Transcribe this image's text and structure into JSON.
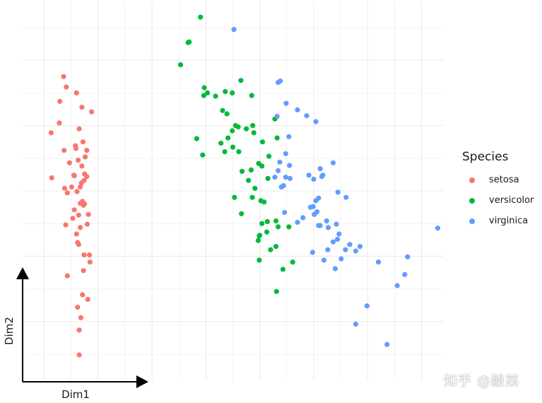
{
  "chart_data": {
    "type": "scatter",
    "xlabel": "Dim1",
    "ylabel": "Dim2",
    "xlim": [
      -3.4,
      4.4
    ],
    "ylim": [
      -2.9,
      2.9
    ],
    "grid": true,
    "legend_position": "right",
    "legend_title": "Species",
    "series": [
      {
        "name": "setosa",
        "color": "#F8766D",
        "points": [
          [
            -2.29,
            -0.16
          ],
          [
            -2.57,
            -0.03
          ],
          [
            -2.33,
            -0.56
          ],
          [
            -2.38,
            -0.79
          ],
          [
            -2.29,
            -1.59
          ],
          [
            -2.16,
            -0.98
          ],
          [
            -2.6,
            -0.52
          ],
          [
            -2.44,
            -0.29
          ],
          [
            -2.18,
            -0.36
          ],
          [
            -2.49,
            0.06
          ],
          [
            -2.62,
            0.04
          ],
          [
            -2.44,
            0.23
          ],
          [
            -2.25,
            0.26
          ],
          [
            -2.24,
            0.52
          ],
          [
            -2.21,
            0.62
          ],
          [
            -2.3,
            0.38
          ],
          [
            -2.31,
            0.12
          ],
          [
            -2.45,
            0.24
          ],
          [
            -2.41,
            0.65
          ],
          [
            -2.37,
            0.47
          ],
          [
            -2.28,
            0.75
          ],
          [
            -2.35,
            0.95
          ],
          [
            -2.3,
            1.28
          ],
          [
            -2.12,
            1.21
          ],
          [
            -2.21,
            0.22
          ],
          [
            -2.33,
            -0.19
          ],
          [
            -2.36,
            -0.37
          ],
          [
            -2.36,
            -0.82
          ],
          [
            -2.2,
            -0.51
          ],
          [
            -2.26,
            -0.98
          ],
          [
            -2.35,
            -2.51
          ],
          [
            -2.32,
            -1.94
          ],
          [
            -2.35,
            -2.13
          ],
          [
            -2.15,
            -1.09
          ],
          [
            -2.27,
            -1.22
          ],
          [
            -2.4,
            -0.66
          ],
          [
            -2.47,
            -0.42
          ],
          [
            -2.42,
            0.69
          ],
          [
            -2.33,
            0.06
          ],
          [
            -2.53,
            0.43
          ],
          [
            -2.86,
            0.2
          ],
          [
            -2.59,
            1.59
          ],
          [
            -2.64,
            1.75
          ],
          [
            -2.71,
            1.37
          ],
          [
            -2.72,
            1.04
          ],
          [
            -2.63,
            0.62
          ],
          [
            -2.87,
            0.89
          ],
          [
            -2.4,
            1.5
          ],
          [
            -2.38,
            -1.78
          ],
          [
            -2.57,
            -1.3
          ],
          [
            -2.25,
            -0.2
          ],
          [
            -2.39,
            -0.01
          ],
          [
            -2.27,
            -0.22
          ],
          [
            -2.19,
            -1.66
          ],
          [
            -2.26,
            0.16
          ]
        ]
      },
      {
        "name": "versicolor",
        "color": "#00BA38",
        "points": [
          [
            -0.1,
            2.66
          ],
          [
            -0.31,
            2.28
          ],
          [
            -0.33,
            2.27
          ],
          [
            -0.47,
            1.93
          ],
          [
            0.65,
            1.69
          ],
          [
            0.36,
            1.52
          ],
          [
            0.49,
            1.5
          ],
          [
            0.03,
            1.5
          ],
          [
            -0.04,
            1.46
          ],
          [
            0.85,
            1.46
          ],
          [
            0.31,
            1.23
          ],
          [
            -0.03,
            1.58
          ],
          [
            0.18,
            1.45
          ],
          [
            1.28,
            1.1
          ],
          [
            0.39,
            1.18
          ],
          [
            0.55,
            1.0
          ],
          [
            0.87,
            1.0
          ],
          [
            0.49,
            0.92
          ],
          [
            0.41,
            0.81
          ],
          [
            -0.17,
            0.8
          ],
          [
            0.5,
            0.67
          ],
          [
            0.28,
            0.73
          ],
          [
            1.05,
            0.75
          ],
          [
            0.89,
            0.89
          ],
          [
            1.32,
            0.81
          ],
          [
            0.35,
            0.6
          ],
          [
            0.61,
            0.6
          ],
          [
            -0.06,
            0.55
          ],
          [
            0.98,
            0.42
          ],
          [
            1.17,
            0.53
          ],
          [
            1.04,
            0.38
          ],
          [
            0.84,
            0.32
          ],
          [
            0.67,
            0.3
          ],
          [
            0.79,
            0.16
          ],
          [
            0.91,
            0.04
          ],
          [
            0.53,
            -0.1
          ],
          [
            1.02,
            -0.15
          ],
          [
            0.86,
            -0.1
          ],
          [
            1.08,
            -0.17
          ],
          [
            1.14,
            -0.47
          ],
          [
            1.3,
            -0.46
          ],
          [
            1.54,
            -0.55
          ],
          [
            1.0,
            -0.68
          ],
          [
            1.13,
            -0.63
          ],
          [
            1.34,
            -0.55
          ],
          [
            1.3,
            -0.85
          ],
          [
            0.97,
            -0.76
          ],
          [
            0.99,
            -0.69
          ],
          [
            1.04,
            -0.5
          ],
          [
            0.66,
            -0.35
          ],
          [
            1.43,
            -1.2
          ],
          [
            1.2,
            -0.9
          ],
          [
            1.61,
            -1.09
          ],
          [
            1.31,
            -1.54
          ],
          [
            0.99,
            -1.06
          ],
          [
            0.6,
            0.98
          ],
          [
            0.75,
            0.95
          ],
          [
            1.15,
            0.19
          ]
        ]
      },
      {
        "name": "virginica",
        "color": "#619CFF",
        "points": [
          [
            0.52,
            2.47
          ],
          [
            1.34,
            1.66
          ],
          [
            1.38,
            1.68
          ],
          [
            1.49,
            1.34
          ],
          [
            1.7,
            1.24
          ],
          [
            1.87,
            1.15
          ],
          [
            2.04,
            1.06
          ],
          [
            1.32,
            1.14
          ],
          [
            1.54,
            0.83
          ],
          [
            1.48,
            0.57
          ],
          [
            1.55,
            0.39
          ],
          [
            1.34,
            0.31
          ],
          [
            1.37,
            0.44
          ],
          [
            1.48,
            0.21
          ],
          [
            1.28,
            0.21
          ],
          [
            1.44,
            0.08
          ],
          [
            1.56,
            0.19
          ],
          [
            1.4,
            0.06
          ],
          [
            1.46,
            -0.33
          ],
          [
            1.7,
            -0.48
          ],
          [
            1.91,
            0.24
          ],
          [
            2.15,
            0.22
          ],
          [
            2.17,
            0.24
          ],
          [
            2.0,
            0.18
          ],
          [
            2.36,
            0.43
          ],
          [
            2.12,
            0.34
          ],
          [
            2.45,
            -0.02
          ],
          [
            2.6,
            -0.1
          ],
          [
            2.09,
            -0.11
          ],
          [
            1.99,
            -0.24
          ],
          [
            2.04,
            -0.15
          ],
          [
            1.8,
            -0.41
          ],
          [
            1.94,
            -0.25
          ],
          [
            2.06,
            -0.32
          ],
          [
            2.01,
            -0.36
          ],
          [
            2.12,
            -0.53
          ],
          [
            2.27,
            -0.56
          ],
          [
            2.09,
            -0.53
          ],
          [
            2.24,
            -0.46
          ],
          [
            2.42,
            -0.51
          ],
          [
            2.47,
            -0.66
          ],
          [
            2.44,
            -0.74
          ],
          [
            2.36,
            -0.78
          ],
          [
            2.59,
            -0.9
          ],
          [
            2.67,
            -0.82
          ],
          [
            2.78,
            -0.92
          ],
          [
            2.86,
            -0.85
          ],
          [
            2.26,
            -0.9
          ],
          [
            1.98,
            -0.94
          ],
          [
            2.19,
            -1.06
          ],
          [
            2.51,
            -1.04
          ],
          [
            3.2,
            -1.09
          ],
          [
            3.74,
            -1.01
          ],
          [
            4.3,
            -0.57
          ],
          [
            2.4,
            -1.19
          ],
          [
            3.69,
            -1.28
          ],
          [
            3.55,
            -1.45
          ],
          [
            2.99,
            -1.76
          ],
          [
            2.78,
            -2.04
          ],
          [
            3.36,
            -2.35
          ]
        ]
      }
    ]
  },
  "watermark": "知乎 @酸菜"
}
